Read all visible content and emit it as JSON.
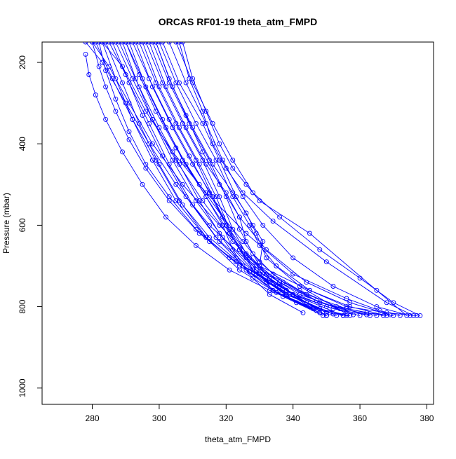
{
  "chart_data": {
    "type": "scatter",
    "title": "ORCAS RF01-19 theta_atm_FMPD",
    "xlabel": "theta_atm_FMPD",
    "ylabel": "Pressure (mbar)",
    "xlim": [
      265,
      382
    ],
    "ylim": [
      1040,
      150
    ],
    "y_reversed": true,
    "x_ticks": [
      280,
      300,
      320,
      340,
      360,
      380
    ],
    "y_ticks": [
      200,
      400,
      600,
      800,
      1000
    ],
    "x_tick_labels": [
      "280",
      "300",
      "320",
      "340",
      "360",
      "380"
    ],
    "y_tick_labels": [
      "200",
      "400",
      "600",
      "800",
      "1000"
    ],
    "grid": false,
    "legend": "none",
    "marker": "open-circle",
    "connected": true,
    "series_color": "#0000ff",
    "series": [
      {
        "x": [
          278,
          283,
          290,
          297,
          305,
          315,
          328,
          342,
          353,
          362,
          370
        ],
        "y": [
          150,
          200,
          300,
          400,
          500,
          600,
          700,
          760,
          800,
          815,
          822
        ]
      },
      {
        "x": [
          280,
          285,
          291,
          298,
          307,
          318,
          330,
          345,
          356,
          368,
          377
        ],
        "y": [
          150,
          210,
          300,
          400,
          500,
          600,
          700,
          760,
          800,
          815,
          822
        ]
      },
      {
        "x": [
          283,
          289,
          296,
          304,
          314,
          326,
          340,
          356,
          366,
          372
        ],
        "y": [
          150,
          210,
          320,
          420,
          520,
          620,
          720,
          780,
          810,
          822
        ]
      },
      {
        "x": [
          285,
          290,
          295,
          301,
          308,
          317,
          329,
          341,
          350
        ],
        "y": [
          150,
          230,
          330,
          430,
          530,
          630,
          720,
          790,
          822
        ]
      },
      {
        "x": [
          287,
          292,
          298,
          305,
          313,
          322,
          333,
          344,
          353
        ],
        "y": [
          150,
          240,
          340,
          440,
          540,
          640,
          730,
          790,
          822
        ]
      },
      {
        "x": [
          289,
          293,
          298,
          304,
          311,
          319,
          328,
          338,
          348,
          356
        ],
        "y": [
          150,
          240,
          340,
          440,
          540,
          630,
          710,
          770,
          805,
          822
        ]
      },
      {
        "x": [
          290,
          295,
          301,
          307,
          314,
          321,
          326,
          330,
          334,
          345,
          357
        ],
        "y": [
          150,
          240,
          340,
          440,
          530,
          620,
          680,
          720,
          760,
          800,
          822
        ]
      },
      {
        "x": [
          292,
          297,
          303,
          309,
          315,
          320,
          324,
          329,
          338,
          350,
          360
        ],
        "y": [
          150,
          240,
          340,
          430,
          520,
          600,
          660,
          710,
          760,
          800,
          822
        ]
      },
      {
        "x": [
          294,
          299,
          305,
          311,
          316,
          321,
          325,
          331,
          340,
          352,
          363
        ],
        "y": [
          150,
          250,
          350,
          440,
          530,
          610,
          670,
          720,
          770,
          805,
          822
        ]
      },
      {
        "x": [
          296,
          301,
          307,
          313,
          318,
          322,
          326,
          332,
          342,
          354,
          365
        ],
        "y": [
          150,
          250,
          350,
          440,
          530,
          610,
          670,
          720,
          770,
          805,
          822
        ]
      },
      {
        "x": [
          298,
          303,
          309,
          315,
          320,
          324,
          328,
          334,
          344,
          356,
          367
        ],
        "y": [
          150,
          250,
          350,
          440,
          530,
          610,
          670,
          720,
          770,
          805,
          822
        ]
      },
      {
        "x": [
          300,
          305,
          311,
          317,
          322,
          327,
          330,
          335,
          345,
          357,
          368
        ],
        "y": [
          150,
          250,
          350,
          440,
          530,
          600,
          650,
          700,
          760,
          800,
          822
        ]
      },
      {
        "x": [
          301,
          306,
          313,
          318,
          323,
          328,
          331,
          330,
          340,
          355
        ],
        "y": [
          150,
          250,
          350,
          440,
          530,
          600,
          640,
          700,
          770,
          822
        ]
      },
      {
        "x": [
          303,
          308,
          314,
          319,
          325,
          331,
          340,
          352,
          365,
          375
        ],
        "y": [
          150,
          250,
          350,
          440,
          530,
          600,
          680,
          750,
          800,
          822
        ]
      },
      {
        "x": [
          305,
          310,
          316,
          322,
          328,
          336,
          348,
          360,
          370,
          378
        ],
        "y": [
          150,
          250,
          350,
          440,
          520,
          580,
          660,
          730,
          790,
          822
        ]
      },
      {
        "x": [
          281,
          286,
          292,
          299,
          306,
          315,
          325,
          338,
          350
        ],
        "y": [
          150,
          240,
          340,
          440,
          540,
          630,
          700,
          760,
          822
        ]
      },
      {
        "x": [
          284,
          289,
          294,
          300,
          307,
          315,
          324,
          335,
          346,
          355
        ],
        "y": [
          150,
          250,
          350,
          450,
          550,
          640,
          710,
          765,
          805,
          822
        ]
      },
      {
        "x": [
          286,
          291,
          297,
          303,
          310,
          318,
          327,
          337,
          349
        ],
        "y": [
          150,
          250,
          350,
          450,
          550,
          640,
          715,
          775,
          822
        ]
      },
      {
        "x": [
          288,
          294,
          300,
          306,
          312,
          318,
          323,
          328,
          333,
          343
        ],
        "y": [
          150,
          260,
          360,
          450,
          540,
          620,
          680,
          730,
          770,
          815
        ]
      },
      {
        "x": [
          291,
          296,
          302,
          308,
          314,
          319,
          322,
          326,
          334,
          348
        ],
        "y": [
          150,
          260,
          360,
          450,
          530,
          600,
          660,
          710,
          760,
          815
        ]
      },
      {
        "x": [
          293,
          298,
          304,
          310,
          316,
          320,
          324,
          329,
          338,
          351
        ],
        "y": [
          150,
          260,
          360,
          450,
          530,
          600,
          660,
          720,
          770,
          815
        ]
      },
      {
        "x": [
          295,
          300,
          306,
          312,
          317,
          321,
          327,
          336,
          348,
          362
        ],
        "y": [
          150,
          260,
          360,
          450,
          530,
          610,
          680,
          740,
          790,
          820
        ]
      },
      {
        "x": [
          297,
          302,
          308,
          314,
          320,
          324,
          326,
          330,
          336,
          352
        ],
        "y": [
          150,
          260,
          360,
          450,
          520,
          580,
          640,
          700,
          760,
          818
        ]
      },
      {
        "x": [
          299,
          304,
          310,
          316,
          322,
          326,
          329,
          332,
          342,
          356
        ],
        "y": [
          150,
          260,
          360,
          450,
          520,
          570,
          620,
          680,
          750,
          818
        ]
      },
      {
        "x": [
          280,
          282,
          284,
          287,
          291,
          296,
          303,
          312,
          323,
          336,
          350
        ],
        "y": [
          150,
          210,
          260,
          320,
          390,
          460,
          540,
          620,
          690,
          750,
          822
        ]
      },
      {
        "x": [
          282,
          284,
          287,
          291,
          296,
          303,
          311,
          321,
          333,
          346
        ],
        "y": [
          150,
          220,
          290,
          370,
          450,
          530,
          610,
          680,
          740,
          805
        ]
      },
      {
        "x": [
          278,
          279,
          281,
          284,
          289,
          295,
          302,
          311,
          321,
          333,
          347
        ],
        "y": [
          180,
          230,
          280,
          340,
          420,
          500,
          580,
          650,
          710,
          760,
          810
        ]
      },
      {
        "x": [
          283,
          287,
          292,
          298,
          305,
          314,
          324,
          332,
          339,
          350
        ],
        "y": [
          150,
          240,
          340,
          440,
          540,
          630,
          700,
          740,
          770,
          815
        ]
      },
      {
        "x": [
          290,
          294,
          299,
          305,
          312,
          319,
          325,
          330,
          337,
          347,
          358
        ],
        "y": [
          150,
          230,
          320,
          410,
          500,
          580,
          640,
          690,
          740,
          785,
          820
        ]
      },
      {
        "x": [
          307,
          310,
          314,
          318,
          322,
          326,
          330,
          345,
          365,
          374
        ],
        "y": [
          150,
          240,
          320,
          400,
          460,
          500,
          540,
          620,
          760,
          822
        ]
      },
      {
        "x": [
          306,
          309,
          313,
          316,
          320,
          325,
          334,
          350,
          368,
          376
        ],
        "y": [
          150,
          240,
          320,
          400,
          460,
          520,
          590,
          690,
          790,
          822
        ]
      },
      {
        "x": [
          299,
          303,
          308,
          313,
          318,
          324,
          332,
          344,
          357,
          369
        ],
        "y": [
          150,
          240,
          330,
          420,
          500,
          580,
          660,
          740,
          790,
          820
        ]
      }
    ]
  }
}
